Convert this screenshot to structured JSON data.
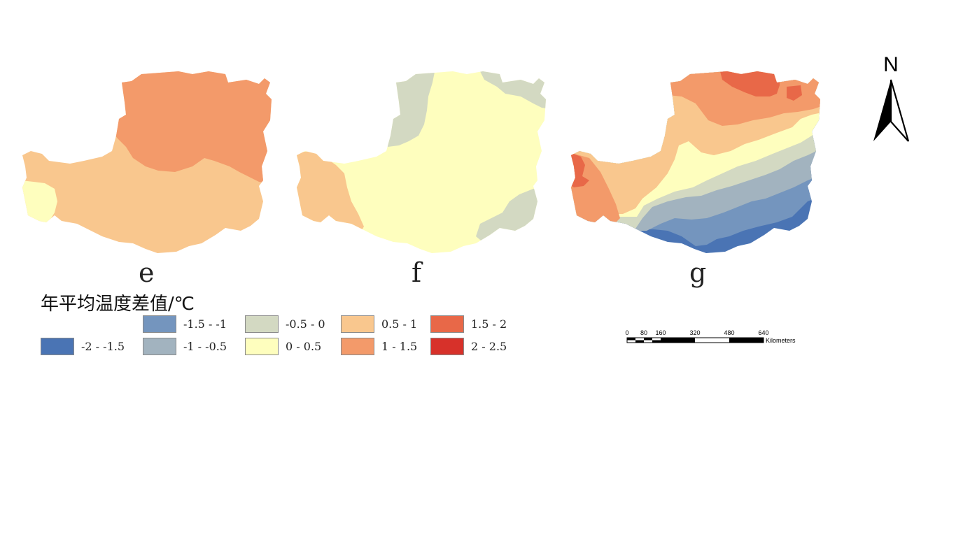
{
  "panels": [
    {
      "label": "e",
      "zones": [
        {
          "class": "0 - 0.5",
          "color": "#FEFEBE"
        },
        {
          "class": "0.5 - 1",
          "color": "#F9C78E"
        },
        {
          "class": "1 - 1.5",
          "color": "#F39A6A"
        }
      ]
    },
    {
      "label": "f",
      "zones": [
        {
          "class": "-0.5 - 0",
          "color": "#D3D9C2"
        },
        {
          "class": "0 - 0.5",
          "color": "#FEFEBE"
        },
        {
          "class": "0.5 - 1",
          "color": "#F9C78E"
        }
      ]
    },
    {
      "label": "g",
      "zones": [
        {
          "class": "-2 - -1.5",
          "color": "#4A74B4"
        },
        {
          "class": "-1.5 - -1",
          "color": "#7495BE"
        },
        {
          "class": "-1 - -0.5",
          "color": "#A2B3BF"
        },
        {
          "class": "-0.5 - 0",
          "color": "#D3D9C2"
        },
        {
          "class": "0 - 0.5",
          "color": "#FEFEBE"
        },
        {
          "class": "0.5 - 1",
          "color": "#F9C78E"
        },
        {
          "class": "1 - 1.5",
          "color": "#F39A6A"
        },
        {
          "class": "1.5 - 2",
          "color": "#E86848"
        }
      ]
    }
  ],
  "legend": {
    "title": "年平均温度差值/℃",
    "items": [
      {
        "label": "-2 - -1.5",
        "color": "#4A74B4"
      },
      {
        "label": "-1.5 - -1",
        "color": "#7495BE"
      },
      {
        "label": "-1 - -0.5",
        "color": "#A2B3BF"
      },
      {
        "label": "-0.5 - 0",
        "color": "#D3D9C2"
      },
      {
        "label": "0 - 0.5",
        "color": "#FEFEBE"
      },
      {
        "label": "0.5 - 1",
        "color": "#F9C78E"
      },
      {
        "label": "1 - 1.5",
        "color": "#F39A6A"
      },
      {
        "label": "1.5 - 2",
        "color": "#E86848"
      },
      {
        "label": "2 - 2.5",
        "color": "#D7312A"
      }
    ]
  },
  "north_arrow": {
    "label": "N",
    "icon": "north-arrow-icon"
  },
  "scale_bar": {
    "ticks": [
      "0",
      "80",
      "160",
      "320",
      "480",
      "640"
    ],
    "unit": "Kilometers"
  }
}
